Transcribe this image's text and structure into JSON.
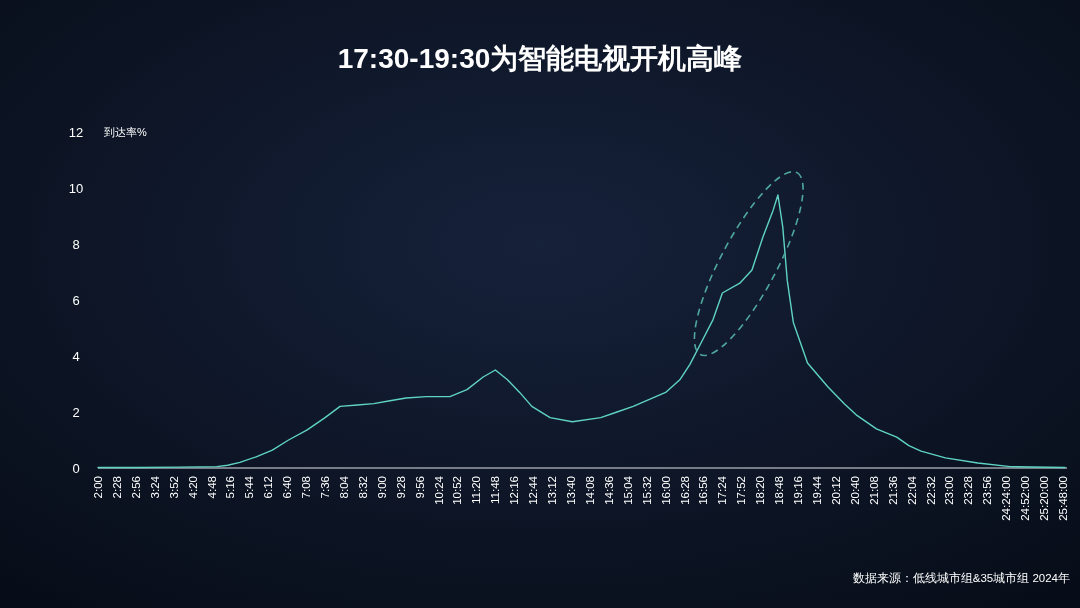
{
  "chart_data": {
    "type": "line",
    "title": "17:30-19:30为智能电视开机高峰",
    "ylabel": "到达率%",
    "x": [
      2.0,
      3.0,
      4.0,
      4.5,
      4.93,
      5.2,
      5.5,
      5.9,
      6.3,
      6.7,
      7.15,
      7.6,
      7.97,
      8.4,
      8.8,
      9.2,
      9.6,
      10.1,
      10.68,
      11.1,
      11.5,
      11.8,
      12.1,
      12.4,
      12.7,
      13.15,
      13.7,
      14.4,
      14.8,
      15.2,
      15.6,
      16.0,
      16.35,
      16.6,
      16.85,
      17.17,
      17.4,
      17.83,
      18.13,
      18.4,
      18.65,
      18.77,
      18.89,
      19.0,
      19.15,
      19.5,
      20.0,
      20.4,
      20.7,
      21.2,
      21.7,
      22.0,
      22.3,
      22.9,
      23.7,
      24.5,
      25.85
    ],
    "series": [
      {
        "color": "#5fd3c4",
        "values": [
          0.02,
          0.02,
          0.03,
          0.04,
          0.05,
          0.1,
          0.2,
          0.4,
          0.64,
          1.0,
          1.35,
          1.8,
          2.2,
          2.25,
          2.3,
          2.4,
          2.5,
          2.55,
          2.55,
          2.8,
          3.25,
          3.5,
          3.15,
          2.7,
          2.2,
          1.8,
          1.65,
          1.8,
          2.0,
          2.2,
          2.45,
          2.7,
          3.15,
          3.7,
          4.4,
          5.3,
          6.25,
          6.6,
          7.07,
          8.25,
          9.2,
          9.75,
          8.6,
          6.7,
          5.2,
          3.75,
          2.9,
          2.3,
          1.9,
          1.4,
          1.1,
          0.8,
          0.6,
          0.36,
          0.18,
          0.05,
          0.02
        ]
      }
    ],
    "xlim": [
      2,
      25.9
    ],
    "ylim": [
      0,
      12
    ],
    "yticks": [
      0,
      2,
      4,
      6,
      8,
      10,
      12
    ],
    "xticks": [
      {
        "value": 2.0,
        "label": "2:00"
      },
      {
        "value": 2.4667,
        "label": "2:28"
      },
      {
        "value": 2.9333,
        "label": "2:56"
      },
      {
        "value": 3.4,
        "label": "3:24"
      },
      {
        "value": 3.8667,
        "label": "3:52"
      },
      {
        "value": 4.3333,
        "label": "4:20"
      },
      {
        "value": 4.8,
        "label": "4:48"
      },
      {
        "value": 5.2667,
        "label": "5:16"
      },
      {
        "value": 5.7333,
        "label": "5:44"
      },
      {
        "value": 6.2,
        "label": "6:12"
      },
      {
        "value": 6.6667,
        "label": "6:40"
      },
      {
        "value": 7.1333,
        "label": "7:08"
      },
      {
        "value": 7.6,
        "label": "7:36"
      },
      {
        "value": 8.0667,
        "label": "8:04"
      },
      {
        "value": 8.5333,
        "label": "8:32"
      },
      {
        "value": 9.0,
        "label": "9:00"
      },
      {
        "value": 9.4667,
        "label": "9:28"
      },
      {
        "value": 9.9333,
        "label": "9:56"
      },
      {
        "value": 10.4,
        "label": "10:24"
      },
      {
        "value": 10.8667,
        "label": "10:52"
      },
      {
        "value": 11.3333,
        "label": "11:20"
      },
      {
        "value": 11.8,
        "label": "11:48"
      },
      {
        "value": 12.2667,
        "label": "12:16"
      },
      {
        "value": 12.7333,
        "label": "12:44"
      },
      {
        "value": 13.2,
        "label": "13:12"
      },
      {
        "value": 13.6667,
        "label": "13:40"
      },
      {
        "value": 14.1333,
        "label": "14:08"
      },
      {
        "value": 14.6,
        "label": "14:36"
      },
      {
        "value": 15.0667,
        "label": "15:04"
      },
      {
        "value": 15.5333,
        "label": "15:32"
      },
      {
        "value": 16.0,
        "label": "16:00"
      },
      {
        "value": 16.4667,
        "label": "16:28"
      },
      {
        "value": 16.9333,
        "label": "16:56"
      },
      {
        "value": 17.4,
        "label": "17:24"
      },
      {
        "value": 17.8667,
        "label": "17:52"
      },
      {
        "value": 18.3333,
        "label": "18:20"
      },
      {
        "value": 18.8,
        "label": "18:48"
      },
      {
        "value": 19.2667,
        "label": "19:16"
      },
      {
        "value": 19.7333,
        "label": "19:44"
      },
      {
        "value": 20.2,
        "label": "20:12"
      },
      {
        "value": 20.6667,
        "label": "20:40"
      },
      {
        "value": 21.1333,
        "label": "21:08"
      },
      {
        "value": 21.6,
        "label": "21:36"
      },
      {
        "value": 22.0667,
        "label": "22:04"
      },
      {
        "value": 22.5333,
        "label": "22:32"
      },
      {
        "value": 23.0,
        "label": "23:00"
      },
      {
        "value": 23.4667,
        "label": "23:28"
      },
      {
        "value": 23.9333,
        "label": "23:56"
      },
      {
        "value": 24.4,
        "label": "24:24:00"
      },
      {
        "value": 24.8667,
        "label": "24:52:00"
      },
      {
        "value": 25.3333,
        "label": "25:20:00"
      },
      {
        "value": 25.8,
        "label": "25:48:00"
      }
    ],
    "grid": false,
    "annotations": [
      "数据来源：低线城市组&35城市组 2024年"
    ]
  }
}
